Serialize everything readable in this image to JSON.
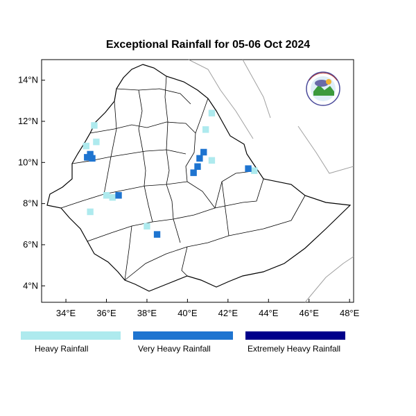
{
  "title": "Exceptional Rainfall for 05-06 Oct 2024",
  "lat_ticks": [
    {
      "value": 14,
      "label": "14°N"
    },
    {
      "value": 12,
      "label": "12°N"
    },
    {
      "value": 10,
      "label": "10°N"
    },
    {
      "value": 8,
      "label": "8°N"
    },
    {
      "value": 6,
      "label": "6°N"
    },
    {
      "value": 4,
      "label": "4°N"
    }
  ],
  "lon_ticks": [
    {
      "value": 34,
      "label": "34°E"
    },
    {
      "value": 36,
      "label": "36°E"
    },
    {
      "value": 38,
      "label": "38°E"
    },
    {
      "value": 40,
      "label": "40°E"
    },
    {
      "value": 42,
      "label": "42°E"
    },
    {
      "value": 44,
      "label": "44°E"
    },
    {
      "value": 46,
      "label": "46°E"
    },
    {
      "value": 48,
      "label": "48°E"
    }
  ],
  "extent": {
    "lon_min": 32.8,
    "lon_max": 48.2,
    "lat_min": 3.2,
    "lat_max": 15.0
  },
  "legend": [
    {
      "label": "Heavy Rainfall",
      "color": "#aeeaee"
    },
    {
      "label": "Very Heavy Rainfall",
      "color": "#1e74d0"
    },
    {
      "label": "Extremely Heavy Rainfall",
      "color": "#00008b"
    }
  ],
  "logo_text": "Ethiopian Meteorology Institute",
  "rain_cells": [
    {
      "lon": 35.2,
      "lat": 10.4,
      "level": "very heavy"
    },
    {
      "lon": 35.05,
      "lat": 10.25,
      "level": "very heavy"
    },
    {
      "lon": 35.3,
      "lat": 10.2,
      "level": "very heavy"
    },
    {
      "lon": 35.0,
      "lat": 10.8,
      "level": "heavy"
    },
    {
      "lon": 35.5,
      "lat": 11.0,
      "level": "heavy"
    },
    {
      "lon": 35.4,
      "lat": 11.8,
      "level": "heavy"
    },
    {
      "lon": 36.0,
      "lat": 8.4,
      "level": "heavy"
    },
    {
      "lon": 36.3,
      "lat": 8.3,
      "level": "heavy"
    },
    {
      "lon": 36.6,
      "lat": 8.4,
      "level": "very heavy"
    },
    {
      "lon": 35.2,
      "lat": 7.6,
      "level": "heavy"
    },
    {
      "lon": 38.0,
      "lat": 6.9,
      "level": "heavy"
    },
    {
      "lon": 38.5,
      "lat": 6.5,
      "level": "very heavy"
    },
    {
      "lon": 40.6,
      "lat": 10.2,
      "level": "very heavy"
    },
    {
      "lon": 40.8,
      "lat": 10.5,
      "level": "very heavy"
    },
    {
      "lon": 40.5,
      "lat": 9.8,
      "level": "very heavy"
    },
    {
      "lon": 40.3,
      "lat": 9.5,
      "level": "very heavy"
    },
    {
      "lon": 41.2,
      "lat": 10.1,
      "level": "heavy"
    },
    {
      "lon": 40.9,
      "lat": 11.6,
      "level": "heavy"
    },
    {
      "lon": 41.2,
      "lat": 12.4,
      "level": "heavy"
    },
    {
      "lon": 43.3,
      "lat": 9.6,
      "level": "heavy"
    },
    {
      "lon": 43.0,
      "lat": 9.7,
      "level": "very heavy"
    }
  ]
}
